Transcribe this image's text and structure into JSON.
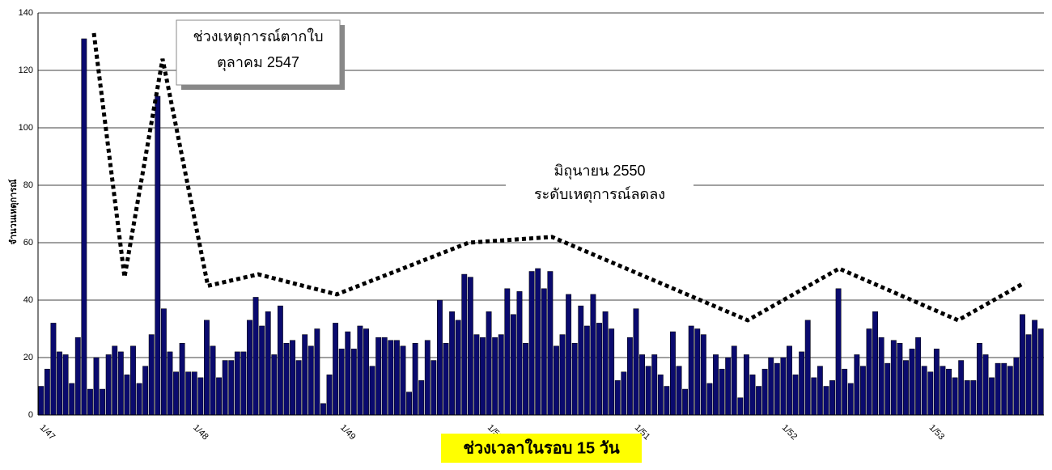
{
  "chart_data": {
    "type": "bar",
    "y_label": "จำนวนเหตุการณ์",
    "x_label": "ช่วงเวลาในรอบ 15 วัน",
    "annotations": [
      [
        "ช่วงเหตุการณ์ตากใบ",
        "ตุลาคม 2547"
      ],
      [
        "มิถุนายน 2550",
        "ระดับเหตุการณ์ลดลง"
      ]
    ],
    "color": "#0a0a6e",
    "ylim": [
      0,
      140
    ],
    "yticks": [
      0,
      20,
      40,
      60,
      80,
      100,
      120,
      140
    ],
    "grid": true,
    "categories": [
      "1/47",
      null,
      null,
      null,
      null,
      null,
      null,
      null,
      null,
      null,
      null,
      null,
      null,
      null,
      null,
      null,
      null,
      null,
      null,
      null,
      null,
      null,
      null,
      null,
      null,
      "1/48",
      null,
      null,
      null,
      null,
      null,
      null,
      null,
      null,
      null,
      null,
      null,
      null,
      null,
      null,
      null,
      null,
      null,
      null,
      null,
      null,
      null,
      null,
      null,
      "1/49",
      null,
      null,
      null,
      null,
      null,
      null,
      null,
      null,
      null,
      null,
      null,
      null,
      null,
      null,
      null,
      null,
      null,
      null,
      null,
      null,
      null,
      null,
      null,
      "1/50",
      null,
      null,
      null,
      null,
      null,
      null,
      null,
      null,
      null,
      null,
      null,
      null,
      null,
      null,
      null,
      null,
      null,
      null,
      null,
      null,
      null,
      null,
      null,
      "1/51",
      null,
      null,
      null,
      null,
      null,
      null,
      null,
      null,
      null,
      null,
      null,
      null,
      null,
      null,
      null,
      null,
      null,
      null,
      null,
      null,
      null,
      null,
      null,
      "1/52",
      null,
      null,
      null,
      null,
      null,
      null,
      null,
      null,
      null,
      null,
      null,
      null,
      null,
      null,
      null,
      null,
      null,
      null,
      null,
      null,
      null,
      null,
      null,
      "1/53",
      null,
      null,
      null,
      null,
      null,
      null,
      null,
      null,
      null,
      null,
      null,
      null,
      null,
      null,
      null,
      null,
      null,
      null
    ],
    "values": [
      10,
      16,
      32,
      22,
      21,
      11,
      27,
      131,
      9,
      20,
      9,
      21,
      24,
      22,
      14,
      24,
      11,
      17,
      28,
      111,
      37,
      22,
      15,
      25,
      15,
      15,
      13,
      33,
      24,
      13,
      19,
      19,
      22,
      22,
      33,
      41,
      31,
      36,
      21,
      38,
      25,
      26,
      19,
      28,
      24,
      30,
      4,
      14,
      32,
      23,
      29,
      23,
      31,
      30,
      17,
      27,
      27,
      26,
      26,
      24,
      8,
      25,
      12,
      26,
      19,
      40,
      25,
      36,
      33,
      49,
      48,
      28,
      27,
      36,
      27,
      28,
      44,
      35,
      43,
      25,
      50,
      51,
      44,
      50,
      24,
      28,
      42,
      25,
      38,
      31,
      42,
      32,
      36,
      30,
      12,
      15,
      27,
      37,
      21,
      17,
      21,
      14,
      10,
      29,
      17,
      9,
      31,
      30,
      28,
      11,
      21,
      16,
      20,
      24,
      6,
      21,
      14,
      10,
      16,
      20,
      18,
      20,
      24,
      14,
      22,
      33,
      13,
      17,
      10,
      12,
      44,
      16,
      11,
      21,
      17,
      30,
      36,
      27,
      18,
      26,
      25,
      19,
      23,
      27,
      17,
      15,
      23,
      17,
      16,
      13,
      19,
      12,
      12,
      25,
      21,
      13,
      18,
      18,
      17,
      20,
      35,
      28,
      33,
      30
    ],
    "outline": {
      "x": [
        8.6,
        13.6,
        19.8,
        27.2,
        35.4,
        48.2,
        69.7,
        83.3,
        115.2,
        130.1,
        149.5,
        160.3
      ],
      "values": [
        133,
        48,
        124,
        45,
        49,
        42,
        60,
        62,
        33,
        51,
        33,
        46
      ]
    }
  }
}
